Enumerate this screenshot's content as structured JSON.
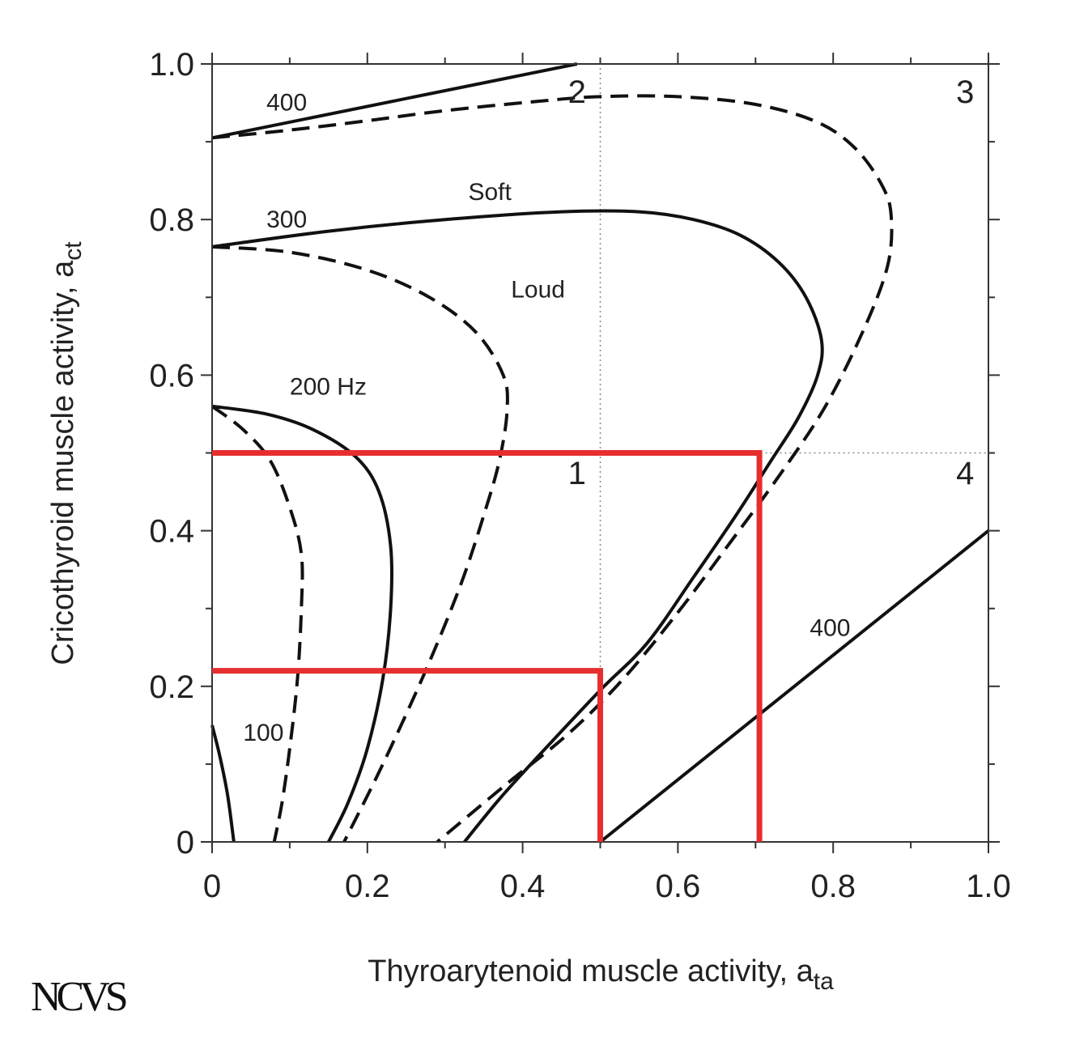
{
  "chart_data": {
    "type": "line",
    "xlabel": "Thyroarytenoid muscle activity, a",
    "xlabel_sub": "ta",
    "ylabel": "Cricothyroid muscle activity, a",
    "ylabel_sub": "ct",
    "xlim": [
      0,
      1.0
    ],
    "ylim": [
      0,
      1.0
    ],
    "x_ticks": [
      0,
      0.2,
      0.4,
      0.6,
      0.8,
      1.0
    ],
    "x_tick_labels": [
      "0",
      "0.2",
      "0.4",
      "0.6",
      "0.8",
      "1.0"
    ],
    "y_ticks": [
      0,
      0.2,
      0.4,
      0.6,
      0.8,
      1.0
    ],
    "y_tick_labels": [
      "0",
      "0.2",
      "0.4",
      "0.6",
      "0.8",
      "1.0"
    ],
    "divider_lines": {
      "x": 0.5,
      "y": 0.5,
      "style": "dotted"
    },
    "region_labels": [
      {
        "text": "1",
        "x": 0.47,
        "y": 0.46
      },
      {
        "text": "2",
        "x": 0.47,
        "y": 0.95
      },
      {
        "text": "3",
        "x": 0.97,
        "y": 0.95
      },
      {
        "text": "4",
        "x": 0.97,
        "y": 0.46
      }
    ],
    "curve_labels": [
      {
        "text": "400",
        "x": 0.07,
        "y": 0.94
      },
      {
        "text": "300",
        "x": 0.07,
        "y": 0.79
      },
      {
        "text": "Soft",
        "x": 0.33,
        "y": 0.825
      },
      {
        "text": "Loud",
        "x": 0.385,
        "y": 0.7
      },
      {
        "text": "200 Hz",
        "x": 0.1,
        "y": 0.575
      },
      {
        "text": "100",
        "x": 0.04,
        "y": 0.13
      },
      {
        "text": "400",
        "x": 0.77,
        "y": 0.265
      }
    ],
    "series": [
      {
        "style": "solid",
        "points": [
          [
            0,
            0.905
          ],
          [
            0.47,
            1.0
          ]
        ]
      },
      {
        "style": "dashed",
        "points": [
          [
            0,
            0.905
          ],
          [
            0.1,
            0.915
          ],
          [
            0.2,
            0.927
          ],
          [
            0.3,
            0.94
          ],
          [
            0.42,
            0.952
          ],
          [
            0.5,
            0.958
          ],
          [
            0.6,
            0.958
          ],
          [
            0.7,
            0.948
          ],
          [
            0.78,
            0.925
          ],
          [
            0.83,
            0.89
          ],
          [
            0.865,
            0.84
          ],
          [
            0.875,
            0.8
          ],
          [
            0.87,
            0.74
          ],
          [
            0.84,
            0.66
          ],
          [
            0.79,
            0.56
          ],
          [
            0.73,
            0.47
          ],
          [
            0.66,
            0.375
          ],
          [
            0.6,
            0.295
          ],
          [
            0.53,
            0.21
          ],
          [
            0.46,
            0.14
          ],
          [
            0.38,
            0.075
          ],
          [
            0.29,
            0.0
          ]
        ]
      },
      {
        "style": "solid",
        "points": [
          [
            0,
            0.765
          ],
          [
            0.15,
            0.785
          ],
          [
            0.3,
            0.8
          ],
          [
            0.45,
            0.81
          ],
          [
            0.55,
            0.81
          ],
          [
            0.62,
            0.8
          ],
          [
            0.68,
            0.78
          ],
          [
            0.73,
            0.745
          ],
          [
            0.765,
            0.7
          ],
          [
            0.785,
            0.645
          ],
          [
            0.78,
            0.6
          ],
          [
            0.755,
            0.545
          ],
          [
            0.72,
            0.49
          ],
          [
            0.675,
            0.42
          ],
          [
            0.62,
            0.34
          ],
          [
            0.56,
            0.255
          ],
          [
            0.5,
            0.195
          ],
          [
            0.42,
            0.11
          ],
          [
            0.37,
            0.055
          ],
          [
            0.325,
            0.0
          ]
        ]
      },
      {
        "style": "dashed",
        "points": [
          [
            0,
            0.765
          ],
          [
            0.1,
            0.758
          ],
          [
            0.2,
            0.735
          ],
          [
            0.28,
            0.7
          ],
          [
            0.34,
            0.655
          ],
          [
            0.375,
            0.6
          ],
          [
            0.38,
            0.555
          ],
          [
            0.37,
            0.49
          ],
          [
            0.35,
            0.42
          ],
          [
            0.32,
            0.33
          ],
          [
            0.275,
            0.22
          ],
          [
            0.22,
            0.1
          ],
          [
            0.17,
            0.0
          ]
        ]
      },
      {
        "style": "solid",
        "points": [
          [
            0,
            0.56
          ],
          [
            0.07,
            0.55
          ],
          [
            0.13,
            0.53
          ],
          [
            0.185,
            0.495
          ],
          [
            0.215,
            0.45
          ],
          [
            0.23,
            0.38
          ],
          [
            0.23,
            0.3
          ],
          [
            0.22,
            0.21
          ],
          [
            0.2,
            0.12
          ],
          [
            0.175,
            0.05
          ],
          [
            0.15,
            0.0
          ]
        ]
      },
      {
        "style": "dashed",
        "points": [
          [
            0,
            0.56
          ],
          [
            0.04,
            0.53
          ],
          [
            0.075,
            0.49
          ],
          [
            0.1,
            0.43
          ],
          [
            0.115,
            0.37
          ],
          [
            0.115,
            0.3
          ],
          [
            0.11,
            0.21
          ],
          [
            0.1,
            0.12
          ],
          [
            0.09,
            0.05
          ],
          [
            0.08,
            0.0
          ]
        ]
      },
      {
        "style": "solid",
        "points": [
          [
            0,
            0.15
          ],
          [
            0.01,
            0.11
          ],
          [
            0.02,
            0.06
          ],
          [
            0.028,
            0.0
          ]
        ]
      },
      {
        "style": "solid",
        "points": [
          [
            0.5,
            0.0
          ],
          [
            1.0,
            0.4
          ]
        ]
      }
    ],
    "highlight_lines": {
      "color": "#e62e2e",
      "paths": [
        [
          [
            0,
            0.22
          ],
          [
            0.5,
            0.22
          ],
          [
            0.5,
            0.0
          ]
        ],
        [
          [
            0,
            0.5
          ],
          [
            0.705,
            0.5
          ],
          [
            0.705,
            0.0
          ]
        ]
      ]
    }
  },
  "logo": "NCVS"
}
